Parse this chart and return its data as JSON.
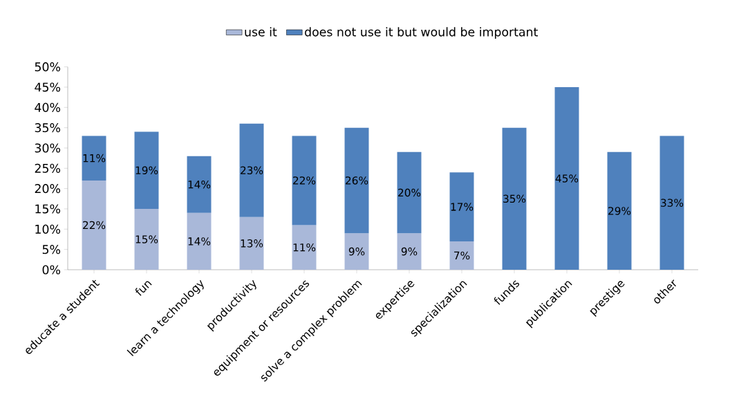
{
  "chart_data": {
    "type": "bar",
    "stacked": true,
    "legend": "top",
    "categories": [
      "educate a student",
      "fun",
      "learn a technology",
      "productivity",
      "equipment or resources",
      "solve a complex problem",
      "expertise",
      "specialization",
      "funds",
      "publication",
      "prestige",
      "other"
    ],
    "series": [
      {
        "name": "use it",
        "color": "#a9b8d9",
        "values": [
          22,
          15,
          14,
          13,
          11,
          9,
          9,
          7,
          null,
          null,
          null,
          null
        ],
        "value_labels": [
          "22%",
          "15%",
          "14%",
          "13%",
          "11%",
          "9%",
          "9%",
          "7%",
          null,
          null,
          null,
          null
        ]
      },
      {
        "name": "does not use it but would be important",
        "color": "#4f81bd",
        "values": [
          11,
          19,
          14,
          23,
          22,
          26,
          20,
          17,
          35,
          45,
          29,
          33
        ],
        "value_labels": [
          "11%",
          "19%",
          "14%",
          "23%",
          "22%",
          "26%",
          "20%",
          "17%",
          "35%",
          "45%",
          "29%",
          "33%"
        ]
      }
    ],
    "ylim": [
      0,
      50
    ],
    "yticks": [
      {
        "value": 0,
        "label": "0%"
      },
      {
        "value": 5,
        "label": "5%"
      },
      {
        "value": 10,
        "label": "10%"
      },
      {
        "value": 15,
        "label": "15%"
      },
      {
        "value": 20,
        "label": "20%"
      },
      {
        "value": 25,
        "label": "25%"
      },
      {
        "value": 30,
        "label": "30%"
      },
      {
        "value": 35,
        "label": "35%"
      },
      {
        "value": 40,
        "label": "40%"
      },
      {
        "value": 45,
        "label": "45%"
      },
      {
        "value": 50,
        "label": "50%"
      }
    ]
  }
}
